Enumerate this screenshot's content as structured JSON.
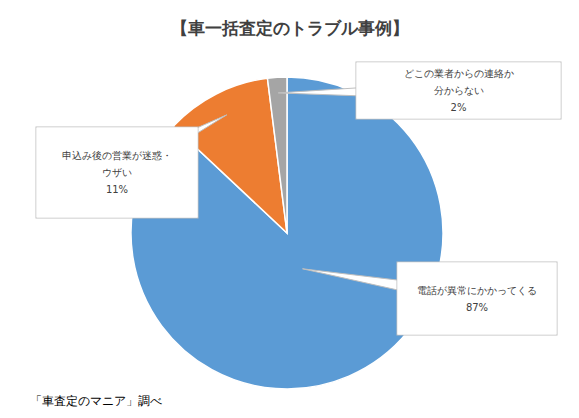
{
  "chart_data": {
    "type": "pie",
    "title": "【車一括査定のトラブル事例】",
    "categories": [
      "電話が異常にかかってくる",
      "申込み後の営業が迷惑・ウザい",
      "どこの業者からの連絡か分からない"
    ],
    "values": [
      87,
      11,
      2
    ],
    "value_labels": [
      "87%",
      "11%",
      "2%"
    ],
    "data_labels": true,
    "colors": [
      "#5B9BD5",
      "#ED7D31",
      "#A5A5A5"
    ],
    "annotations": [
      "「車査定のマニア」調べ"
    ]
  }
}
